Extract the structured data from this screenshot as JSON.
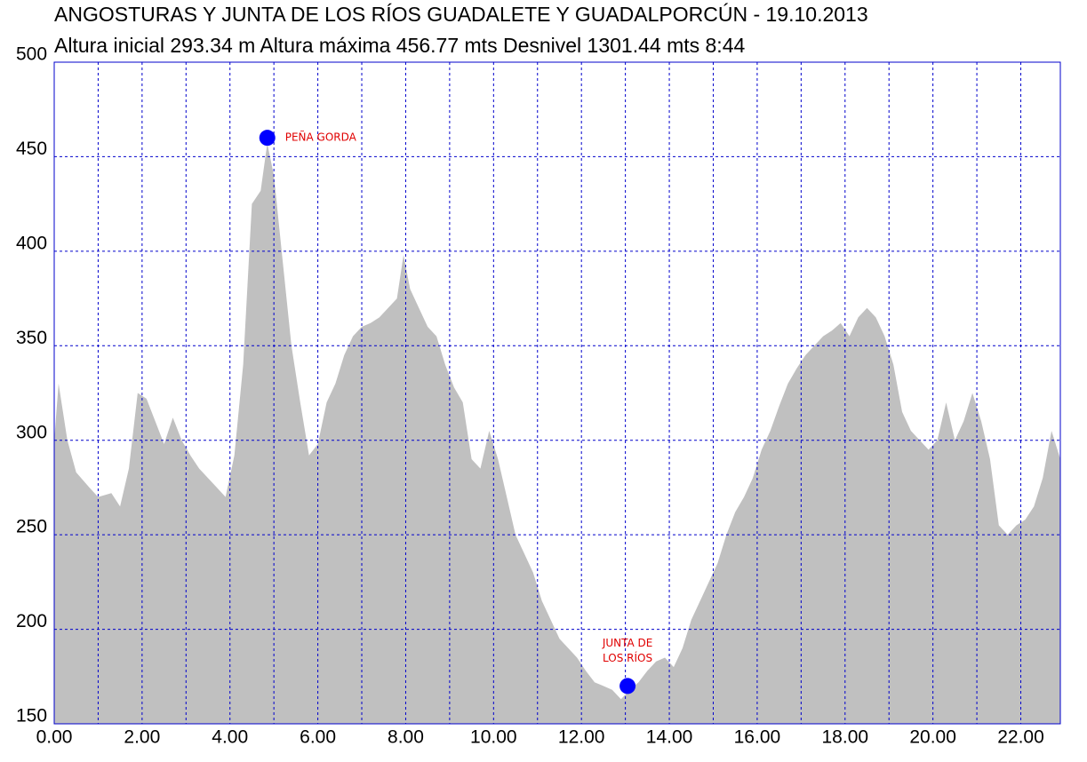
{
  "chart_data": {
    "type": "area",
    "title": "ANGOSTURAS Y JUNTA DE LOS RÍOS GUADALETE Y GUADALPORCÚN - 19.10.2013",
    "subtitle": "Altura inicial  293.34 m   Altura máxima  456.77 mts   Desnivel  1301.44 mts 8:44",
    "color": "#c0c0c0",
    "grid_color": "#0000cc",
    "grid": true,
    "xlim": [
      0,
      22.9
    ],
    "ylim": [
      150,
      500
    ],
    "xticks": [
      {
        "value": 0,
        "label": "0.00"
      },
      {
        "value": 2,
        "label": "2.00"
      },
      {
        "value": 4,
        "label": "4.00"
      },
      {
        "value": 6,
        "label": "6.00"
      },
      {
        "value": 8,
        "label": "8.00"
      },
      {
        "value": 10,
        "label": "10.00"
      },
      {
        "value": 12,
        "label": "12.00"
      },
      {
        "value": 14,
        "label": "14.00"
      },
      {
        "value": 16,
        "label": "16.00"
      },
      {
        "value": 18,
        "label": "18.00"
      },
      {
        "value": 20,
        "label": "20.00"
      },
      {
        "value": 22,
        "label": "22.00"
      }
    ],
    "x_minor_ticks": [
      1,
      3,
      5,
      7,
      9,
      11,
      13,
      15,
      17,
      19,
      21
    ],
    "yticks": [
      150,
      200,
      250,
      300,
      350,
      400,
      450,
      500
    ],
    "x": [
      0,
      0.1,
      0.3,
      0.5,
      0.8,
      1.0,
      1.3,
      1.5,
      1.7,
      1.9,
      2.1,
      2.3,
      2.5,
      2.7,
      2.9,
      3.1,
      3.3,
      3.5,
      3.7,
      3.9,
      4.1,
      4.3,
      4.5,
      4.7,
      4.85,
      5.0,
      5.2,
      5.4,
      5.6,
      5.8,
      6.0,
      6.2,
      6.4,
      6.6,
      6.8,
      7.0,
      7.2,
      7.4,
      7.6,
      7.8,
      7.95,
      8.1,
      8.3,
      8.5,
      8.7,
      8.9,
      9.1,
      9.3,
      9.5,
      9.7,
      9.9,
      10.1,
      10.3,
      10.5,
      10.7,
      10.9,
      11.1,
      11.3,
      11.5,
      11.7,
      11.9,
      12.1,
      12.3,
      12.5,
      12.7,
      12.9,
      13.1,
      13.3,
      13.5,
      13.7,
      13.9,
      14.1,
      14.3,
      14.5,
      14.7,
      14.9,
      15.1,
      15.3,
      15.5,
      15.7,
      15.9,
      16.1,
      16.3,
      16.5,
      16.7,
      16.9,
      17.1,
      17.3,
      17.5,
      17.7,
      17.9,
      18.1,
      18.3,
      18.5,
      18.7,
      18.9,
      19.1,
      19.3,
      19.5,
      19.7,
      19.9,
      20.1,
      20.3,
      20.5,
      20.7,
      20.9,
      21.1,
      21.3,
      21.5,
      21.7,
      21.9,
      22.1,
      22.3,
      22.5,
      22.7,
      22.9
    ],
    "values": [
      300,
      330,
      300,
      283,
      275,
      270,
      272,
      265,
      285,
      325,
      322,
      310,
      298,
      312,
      300,
      292,
      285,
      280,
      275,
      270,
      292,
      340,
      425,
      432,
      457,
      440,
      395,
      350,
      320,
      292,
      298,
      320,
      330,
      345,
      355,
      360,
      362,
      365,
      370,
      375,
      398,
      380,
      370,
      360,
      355,
      340,
      328,
      320,
      290,
      285,
      305,
      290,
      270,
      250,
      240,
      230,
      215,
      205,
      195,
      190,
      185,
      178,
      172,
      170,
      168,
      163,
      168,
      172,
      178,
      183,
      185,
      180,
      190,
      205,
      215,
      225,
      235,
      250,
      262,
      270,
      280,
      295,
      305,
      318,
      330,
      338,
      345,
      350,
      355,
      358,
      362,
      355,
      365,
      370,
      365,
      355,
      340,
      315,
      305,
      300,
      295,
      300,
      320,
      300,
      310,
      325,
      310,
      290,
      255,
      250,
      255,
      258,
      265,
      280,
      305,
      290
    ],
    "annotations": [
      {
        "x": 4.85,
        "y": 460,
        "marker_color": "#0000ff",
        "lines": [
          "PEÑA GORDA"
        ]
      },
      {
        "x": 13.05,
        "y": 170,
        "marker_color": "#0000ff",
        "lines": [
          "JUNTA DE",
          "LOS RÍOS"
        ]
      }
    ]
  }
}
